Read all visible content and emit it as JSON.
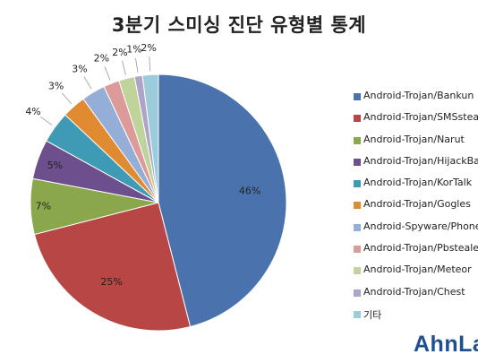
{
  "chart_data": {
    "type": "pie",
    "title": "3분기 스미싱 진단 유형별 통계",
    "categories": [
      "Android-Trojan/Bankun",
      "Android-Trojan/SMSstea",
      "Android-Trojan/Narut",
      "Android-Trojan/HijackBa",
      "Android-Trojan/KorTalk",
      "Android-Trojan/Gogles",
      "Android-Spyware/Phone",
      "Android-Trojan/Pbsteale",
      "Android-Trojan/Meteor",
      "Android-Trojan/Chest",
      "기타"
    ],
    "values": [
      46,
      25,
      7,
      5,
      4,
      3,
      3,
      2,
      2,
      1,
      2
    ],
    "value_labels": [
      "46%",
      "25%",
      "7%",
      "5%",
      "4%",
      "3%",
      "3%",
      "2%",
      "2%",
      "1%",
      "2%"
    ],
    "colors": [
      "#4a73ae",
      "#b84644",
      "#8aa84b",
      "#6c4f8c",
      "#3f9bb5",
      "#e08a32",
      "#95aed8",
      "#dc9a98",
      "#bed49a",
      "#b0a3c8",
      "#9ccbdc"
    ],
    "legend_position": "right"
  },
  "brand": {
    "logo_text": "AhnLab"
  }
}
